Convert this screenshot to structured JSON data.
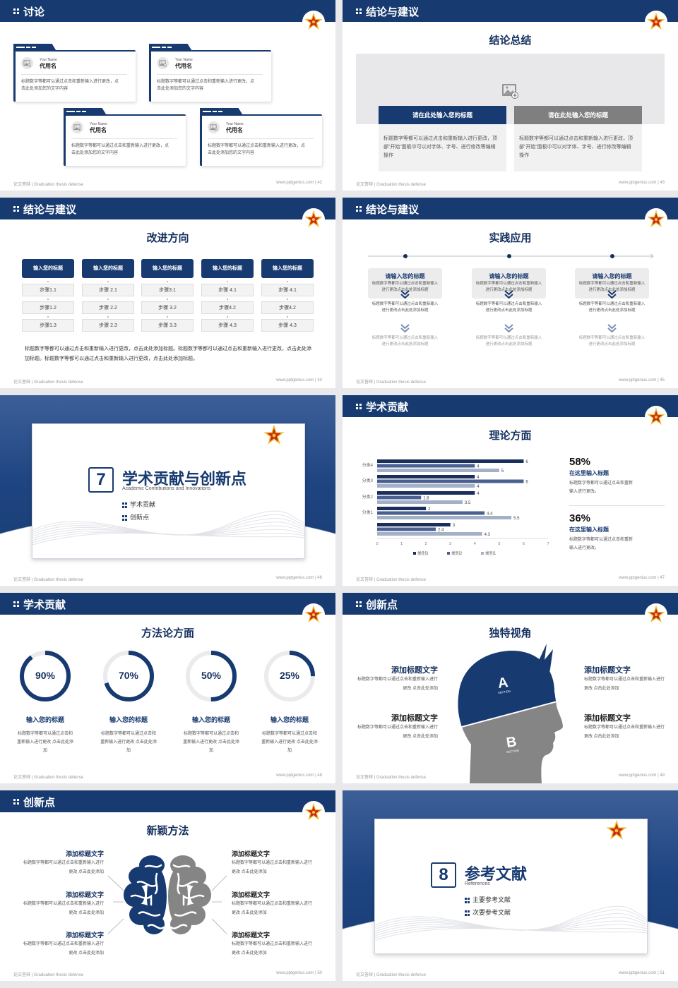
{
  "footer": {
    "left": "论文答辩 | Graduation thesis defense"
  },
  "colors": {
    "navy": "#173a70",
    "gray": "#858585",
    "light_gray": "#e8e8ea",
    "star_red": "#c8281e",
    "star_gold": "#f2c230"
  },
  "slides": [
    {
      "type": "cards",
      "page": "42",
      "header": "讨论",
      "footer_right": "www.pptgenius.com | 42",
      "cards": [
        {
          "en": "Your Name",
          "name": "代用名",
          "text": "标题数字等都可以通过点击和重新输入进行更改，点击此处添加您的文字内容",
          "icon": "image-icon"
        },
        {
          "en": "Your Name",
          "name": "代用名",
          "text": "标题数字等都可以通过点击和重新输入进行更改，点击此处添加您的文字内容",
          "icon": "image-icon"
        },
        {
          "en": "Your Name",
          "name": "代用名",
          "text": "标题数字等都可以通过点击和重新输入进行更改，点击此处添加您的文字内容",
          "icon": "image-icon"
        },
        {
          "en": "Your Name",
          "name": "代用名",
          "text": "标题数字等都可以通过点击和重新输入进行更改，点击此处添加您的文字内容",
          "icon": "image-icon"
        }
      ]
    },
    {
      "type": "summary",
      "page": "43",
      "header": "结论与建议",
      "subtitle": "结论总结",
      "footer_right": "www.pptgenius.com | 43",
      "boxes": [
        {
          "title": "请在此处输入您的标题",
          "text": "标题数字等都可以通过点击和重新输入进行更改，顶部“开始”面板中可以对字体、字号、进行修改等编辑操作"
        },
        {
          "title": "请在此处输入您的标题",
          "text": "标题数字等都可以通过点击和重新输入进行更改，顶部“开始”面板中可以对字体、字号、进行修改等编辑操作"
        }
      ]
    },
    {
      "type": "steps",
      "page": "44",
      "header": "结论与建议",
      "subtitle": "改进方向",
      "footer_right": "www.pptgenius.com | 44",
      "columns": [
        {
          "title": "输入您的标题",
          "steps": [
            "步骤1.1",
            "步骤1.2",
            "步骤1.3"
          ]
        },
        {
          "title": "输入您的标题",
          "steps": [
            "步骤 2.1",
            "步骤 2.2",
            "步骤 2.3"
          ]
        },
        {
          "title": "输入您的标题",
          "steps": [
            "步骤3.1",
            "步骤 3.2",
            "步骤 3.3"
          ]
        },
        {
          "title": "输入您的标题",
          "steps": [
            "步骤 4.1",
            "步骤4.2",
            "步骤 4.3"
          ]
        },
        {
          "title": "输入您的标题",
          "steps": [
            "步骤 4.1",
            "步骤4.2",
            "步骤 4.3"
          ]
        }
      ],
      "paragraph": "标题数字等都可以通过点击和重新输入进行更改，点击此处添加标题。标题数字等都可以通过点击和重新输入进行更改，点击此处添加标题。标题数字等都可以通过点击和重新输入进行更改，点击此处添加标题。"
    },
    {
      "type": "timeline",
      "page": "45",
      "header": "结论与建议",
      "subtitle": "实践应用",
      "footer_right": "www.pptgenius.com | 45",
      "columns": [
        {
          "title": "请输入您的标题",
          "texts": [
            "标题数字等都可以通过点击和重新输入进行更改点击此处添加标题",
            "标题数字等都可以通过点击和重新输入进行更改点击此处添加标题",
            "标题数字等都可以通过点击和重新输入进行更改点击此处添加标题"
          ]
        },
        {
          "title": "请输入您的标题",
          "texts": [
            "标题数字等都可以通过点击和重新输入进行更改点击此处添加标题",
            "标题数字等都可以通过点击和重新输入进行更改点击此处添加标题",
            "标题数字等都可以通过点击和重新输入进行更改点击此处添加标题"
          ]
        },
        {
          "title": "请输入您的标题",
          "texts": [
            "标题数字等都可以通过点击和重新输入进行更改点击此处添加标题",
            "标题数字等都可以通过点击和重新输入进行更改点击此处添加标题",
            "标题数字等都可以通过点击和重新输入进行更改点击此处添加标题"
          ]
        }
      ]
    },
    {
      "type": "section",
      "page": "46",
      "number": "7",
      "title": "学术贡献与创新点",
      "en": "Academic Contributions and Innovations",
      "footer_right": "www.pptgenius.com | 46",
      "bullets": [
        "学术贡献",
        "创新点"
      ]
    },
    {
      "type": "chart",
      "page": "47",
      "header": "学术贡献",
      "subtitle": "理论方面",
      "footer_right": "www.pptgenius.com | 47",
      "stats": [
        {
          "value": "58%",
          "title": "在这里输入标题",
          "text": "标题数字等都可以通过点击和重新输入进行更改。"
        },
        {
          "value": "36%",
          "title": "在这里输入标题",
          "text": "标题数字等都可以通过点击和重新输入进行更改。"
        }
      ]
    },
    {
      "type": "rings",
      "page": "48",
      "header": "学术贡献",
      "subtitle": "方法论方面",
      "footer_right": "www.pptgenius.com | 48",
      "items": [
        {
          "percent": 90,
          "label": "90%",
          "title": "输入您的标题",
          "text": "标题数字等都可以通过点击和重新输入进行更改 点击此处添加"
        },
        {
          "percent": 70,
          "label": "70%",
          "title": "输入您的标题",
          "text": "标题数字等都可以通过点击和重新输入进行更改 点击此处添加"
        },
        {
          "percent": 50,
          "label": "50%",
          "title": "输入您的标题",
          "text": "标题数字等都可以通过点击和重新输入进行更改 点击此处添加"
        },
        {
          "percent": 25,
          "label": "25%",
          "title": "输入您的标题",
          "text": "标题数字等都可以通过点击和重新输入进行更改 点击此处添加"
        }
      ]
    },
    {
      "type": "head",
      "page": "49",
      "header": "创新点",
      "subtitle": "独特视角",
      "footer_right": "www.pptgenius.com | 49",
      "section_a": "A",
      "section_b": "B",
      "section_word": "SECTION",
      "items": [
        {
          "title": "添加标题文字",
          "text": "标题数字等都可以通过点击和重新输入进行更改 点击此处添加"
        },
        {
          "title": "添加标题文字",
          "text": "标题数字等都可以通过点击和重新输入进行更改 点击此处添加"
        },
        {
          "title": "添加标题文字",
          "text": "标题数字等都可以通过点击和重新输入进行更改 点击此处添加"
        },
        {
          "title": "添加标题文字",
          "text": "标题数字等都可以通过点击和重新输入进行更改 点击此处添加"
        }
      ]
    },
    {
      "type": "brain",
      "page": "50",
      "header": "创新点",
      "subtitle": "新颖方法",
      "footer_right": "www.pptgenius.com | 50",
      "items": [
        {
          "title": "添加标题文字",
          "text": "标题数字等都可以通过点击和重新输入进行更改 点击此处添加"
        },
        {
          "title": "添加标题文字",
          "text": "标题数字等都可以通过点击和重新输入进行更改 点击此处添加"
        },
        {
          "title": "添加标题文字",
          "text": "标题数字等都可以通过点击和重新输入进行更改 点击此处添加"
        },
        {
          "title": "添加标题文字",
          "text": "标题数字等都可以通过点击和重新输入进行更改 点击此处添加"
        },
        {
          "title": "添加标题文字",
          "text": "标题数字等都可以通过点击和重新输入进行更改 点击此处添加"
        },
        {
          "title": "添加标题文字",
          "text": "标题数字等都可以通过点击和重新输入进行更改 点击此处添加"
        }
      ]
    },
    {
      "type": "section",
      "page": "51",
      "number": "8",
      "title": "参考文献",
      "en": "References",
      "footer_right": "www.pptgenius.com | 51",
      "bullets": [
        "主要参考文献",
        "次要参考文献"
      ]
    }
  ],
  "chart_data": {
    "type": "bar",
    "orientation": "horizontal",
    "categories": [
      "",
      "分类1",
      "分类2",
      "分类3",
      "分类4"
    ],
    "series": [
      {
        "name": "类别1",
        "values": [
          4.3,
          5.5,
          3.5,
          4,
          5
        ],
        "color": "#a4afc8"
      },
      {
        "name": "类别2",
        "values": [
          2.4,
          4.4,
          1.8,
          6,
          4
        ],
        "color": "#4a6090"
      },
      {
        "name": "类别3",
        "values": [
          3,
          2,
          4,
          4,
          6
        ],
        "color": "#1a2f5e"
      }
    ],
    "legend_order": [
      "类别3",
      "类别2",
      "类别1"
    ],
    "xlim": [
      0,
      7
    ],
    "xticks": [
      "0",
      "1",
      "2",
      "3",
      "4",
      "5",
      "6",
      "7"
    ],
    "data_labels": true,
    "grid": false,
    "legend": "bottom"
  }
}
